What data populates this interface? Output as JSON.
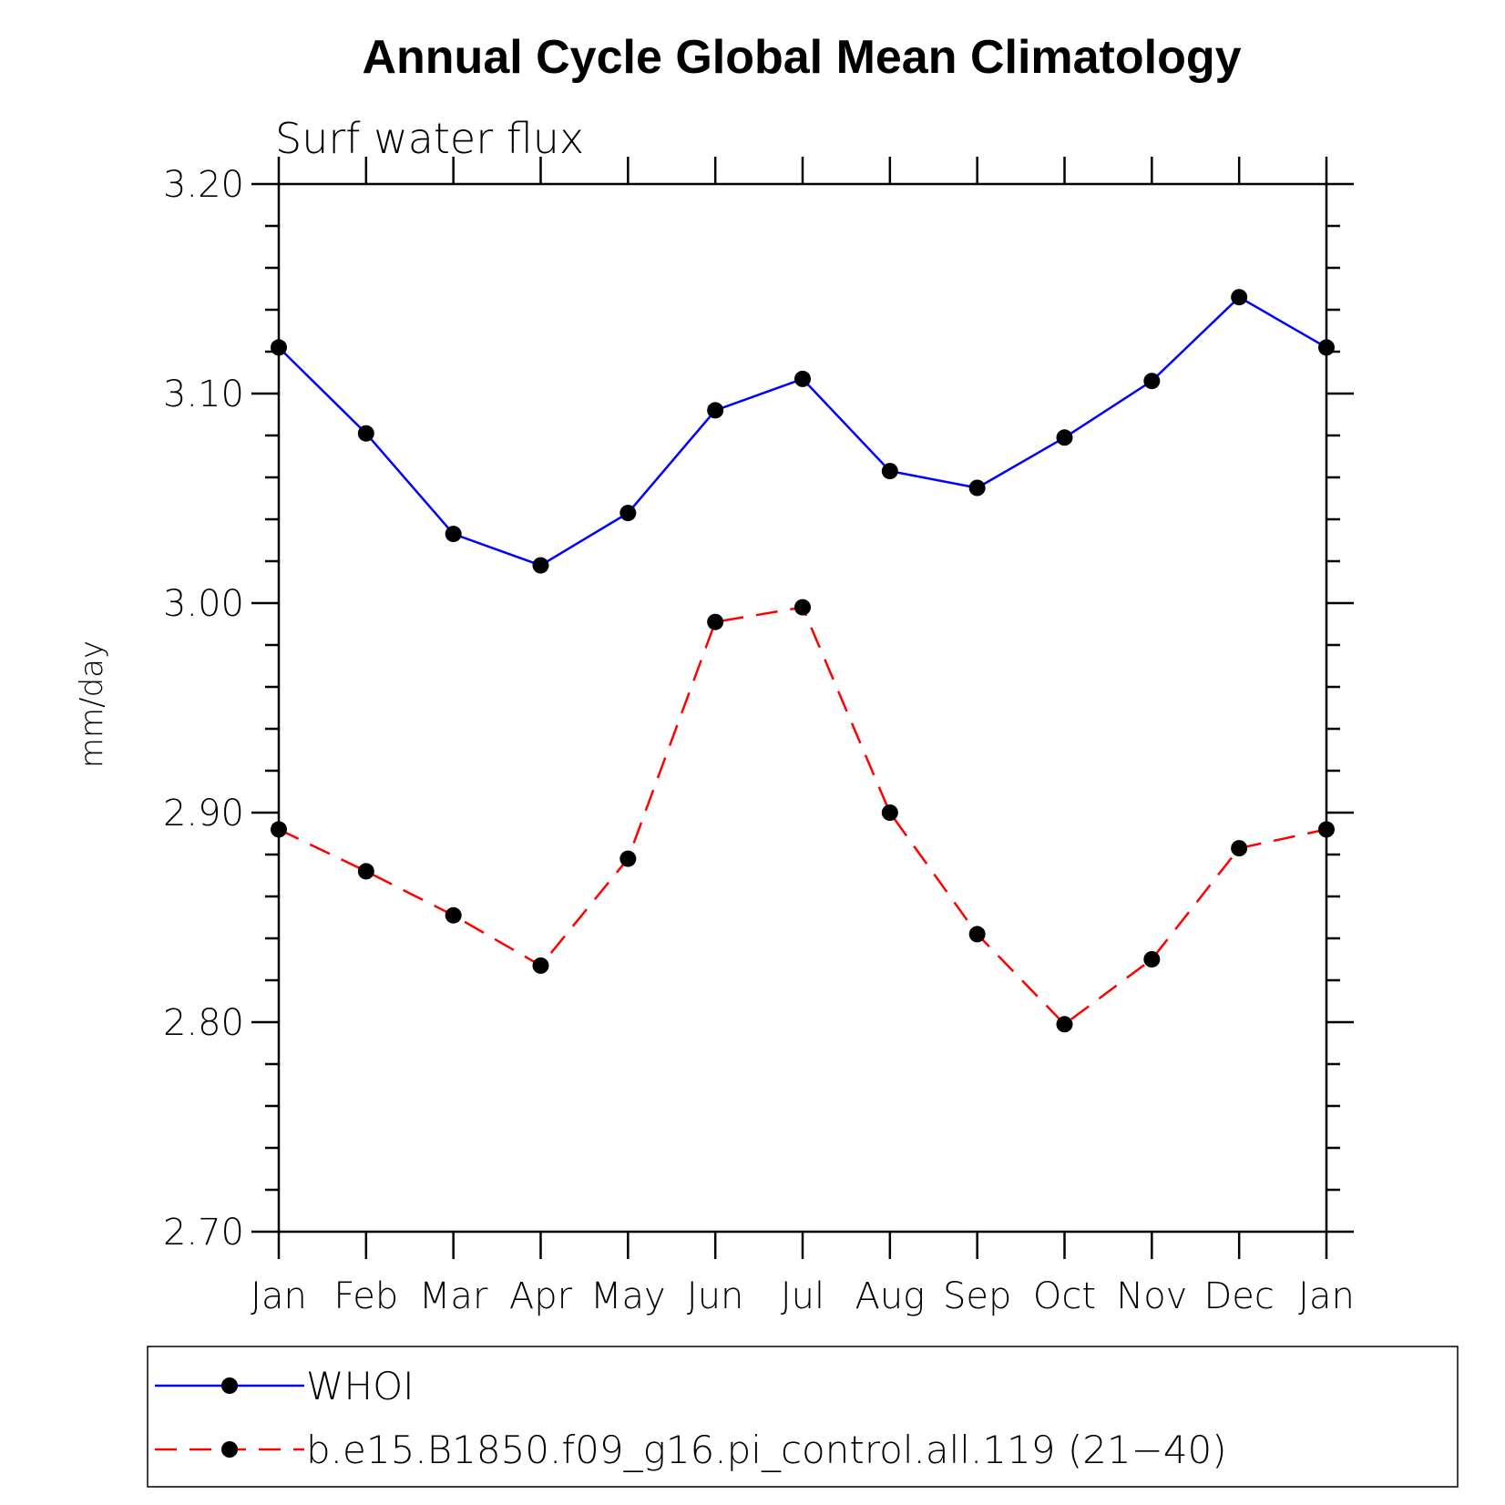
{
  "chart_data": {
    "type": "line",
    "title": "Annual Cycle Global Mean Climatology",
    "subtitle": "Surf water flux",
    "ylabel": "mm/day",
    "xlabel": "",
    "categories": [
      "Jan",
      "Feb",
      "Mar",
      "Apr",
      "May",
      "Jun",
      "Jul",
      "Aug",
      "Sep",
      "Oct",
      "Nov",
      "Dec",
      "Jan"
    ],
    "ylim": [
      2.7,
      3.2
    ],
    "yticks": [
      "2.70",
      "2.80",
      "2.90",
      "3.00",
      "3.10",
      "3.20"
    ],
    "grid": false,
    "legend_position": "bottom",
    "series": [
      {
        "name": "WHOI",
        "color": "#0000ff",
        "dash": "solid",
        "marker": "filled-circle",
        "values": [
          3.122,
          3.081,
          3.033,
          3.018,
          3.043,
          3.092,
          3.107,
          3.063,
          3.055,
          3.079,
          3.106,
          3.146,
          3.122
        ]
      },
      {
        "name": "b.e15.B1850.f09_g16.pi_control.all.119 (21−40)",
        "color": "#ff0000",
        "dash": "dashed",
        "marker": "filled-circle",
        "values": [
          2.892,
          2.872,
          2.851,
          2.827,
          2.878,
          2.991,
          2.998,
          2.9,
          2.842,
          2.799,
          2.83,
          2.883,
          2.892
        ]
      }
    ]
  }
}
